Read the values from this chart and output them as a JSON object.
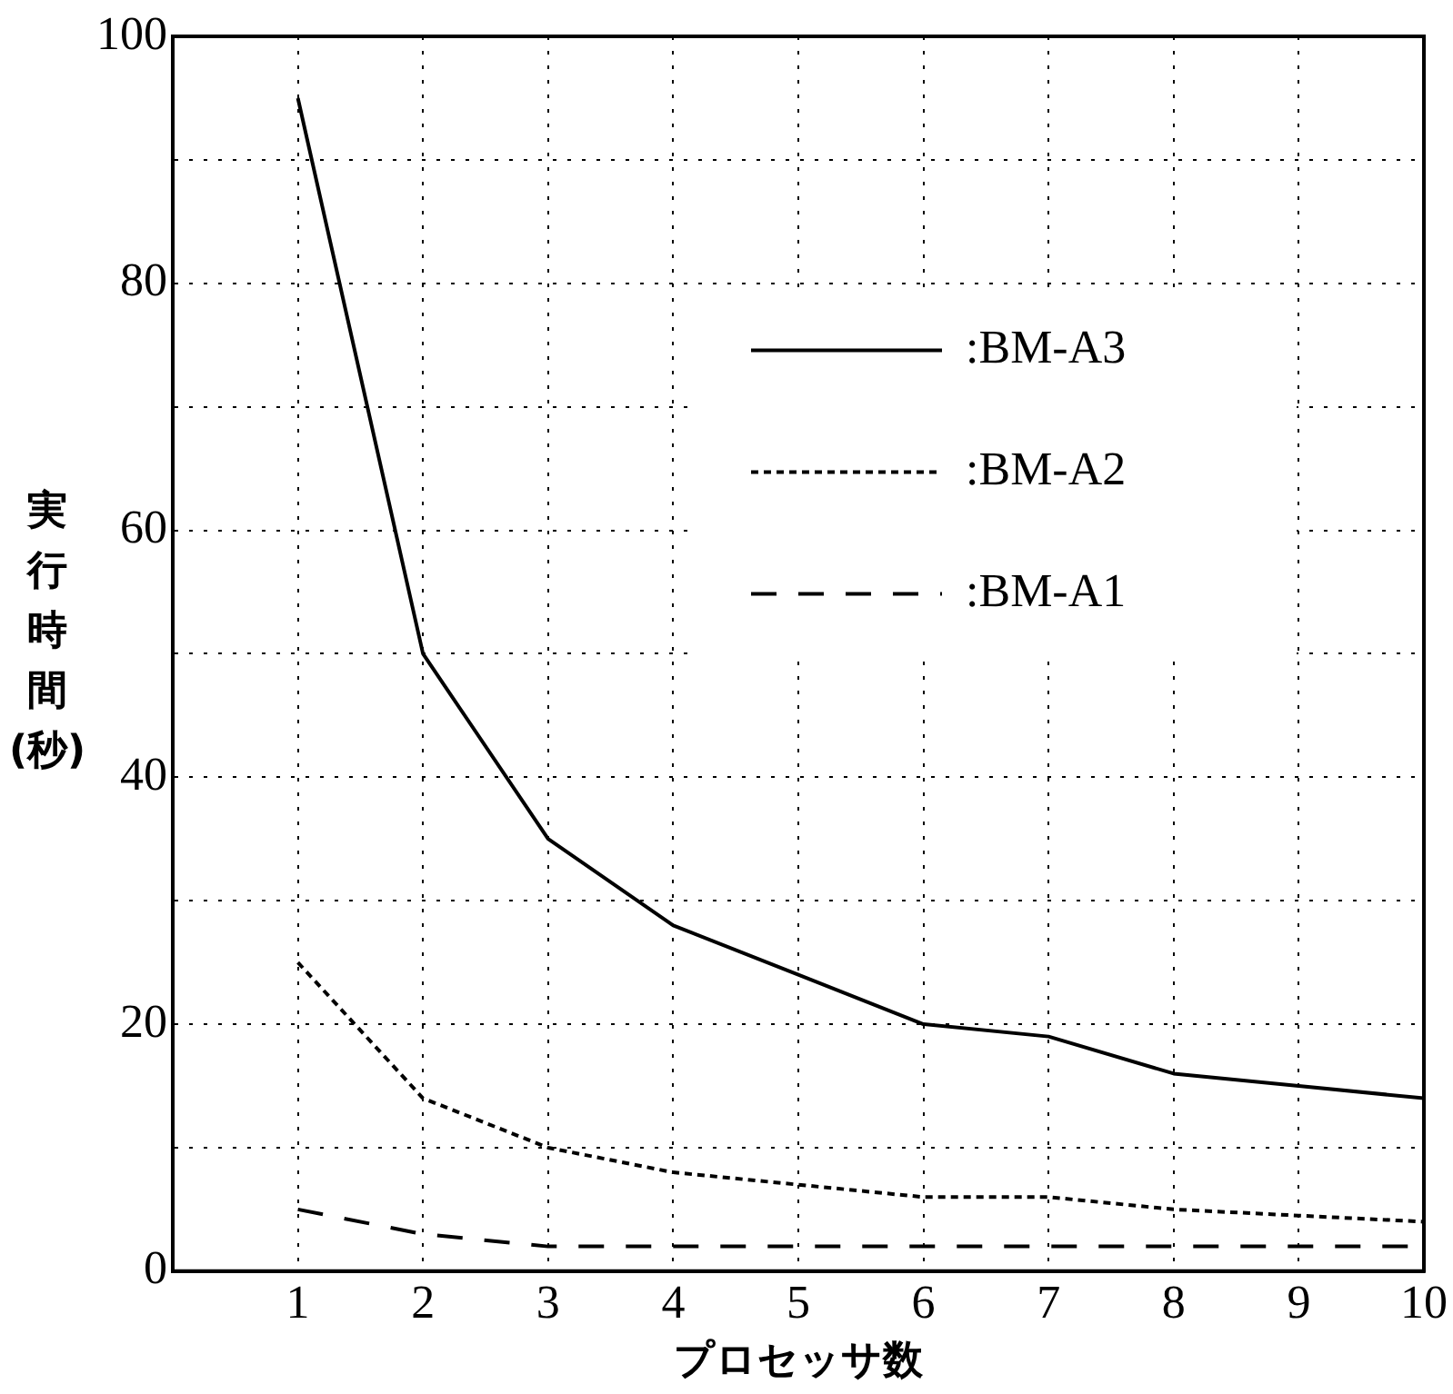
{
  "chart_data": {
    "type": "line",
    "xlabel": "プロセッサ数",
    "ylabel": "実行時間(秒)",
    "x": [
      1,
      2,
      3,
      4,
      5,
      6,
      7,
      8,
      9,
      10
    ],
    "xlim": [
      0,
      10
    ],
    "xticks": [
      1,
      2,
      3,
      4,
      5,
      6,
      7,
      8,
      9,
      10
    ],
    "ylim": [
      0,
      100
    ],
    "yticks": [
      0,
      {
        "value": 10,
        "label": null
      },
      20,
      {
        "value": 30,
        "label": null
      },
      40,
      {
        "value": 50,
        "label": null
      },
      60,
      {
        "value": 70,
        "label": null
      },
      80,
      {
        "value": 90,
        "label": null
      },
      100
    ],
    "grid": true,
    "legend": "right",
    "marker": "none",
    "series": [
      {
        "name": ":BM-A3",
        "color": "#000000",
        "line_style": "solid",
        "values": [
          95,
          50,
          35,
          28,
          24,
          20,
          19,
          16,
          15,
          14
        ]
      },
      {
        "name": ":BM-A2",
        "color": "#000000",
        "line_style": "dotted",
        "values": [
          25,
          14,
          10,
          8,
          7,
          6,
          6,
          5,
          4.5,
          4
        ]
      },
      {
        "name": ":BM-A1",
        "color": "#000000",
        "line_style": "dashed",
        "values": [
          5,
          3,
          2,
          2,
          2,
          2,
          2,
          2,
          2,
          2
        ]
      }
    ]
  }
}
